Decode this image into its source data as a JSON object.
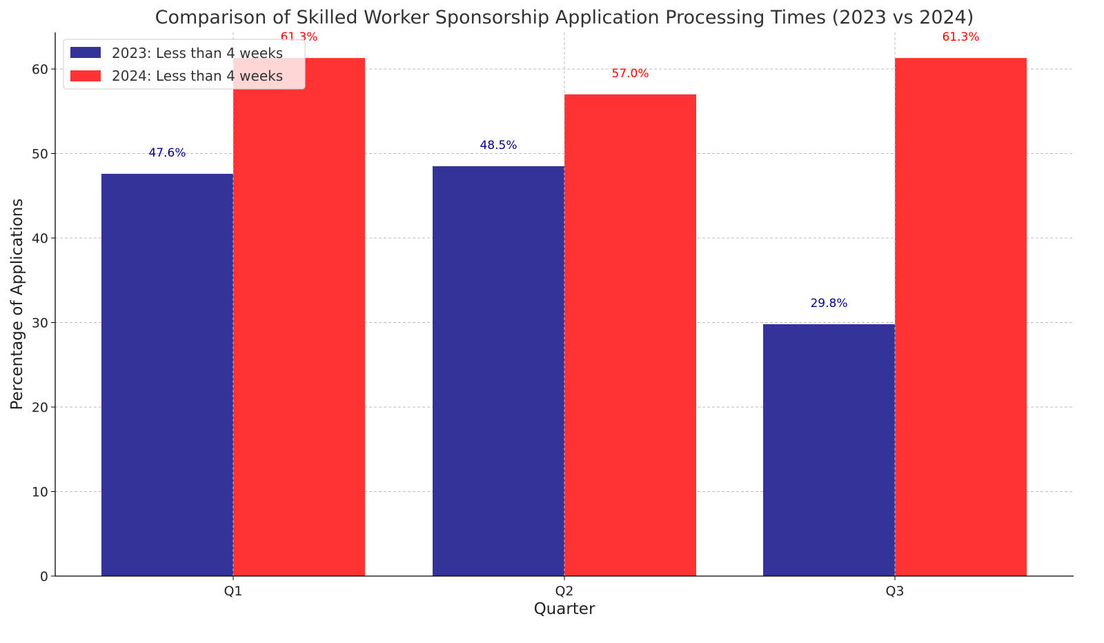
{
  "chart_data": {
    "type": "bar",
    "title": "Comparison of Skilled Worker Sponsorship Application Processing Times (2023 vs 2024)",
    "xlabel": "Quarter",
    "ylabel": "Percentage of Applications",
    "categories": [
      "Q1",
      "Q2",
      "Q3"
    ],
    "ylim": [
      0,
      64.3
    ],
    "yticks": [
      0,
      10,
      20,
      30,
      40,
      50,
      60
    ],
    "grid": true,
    "legend_position": "top-left",
    "series": [
      {
        "name": "2023: Less than 4 weeks",
        "values": [
          47.6,
          48.5,
          29.8
        ],
        "labels": [
          "47.6%",
          "48.5%",
          "29.8%"
        ],
        "color": "#333399",
        "label_color": "#00008b"
      },
      {
        "name": "2024: Less than 4 weeks",
        "values": [
          61.3,
          57.0,
          61.3
        ],
        "labels": [
          "61.3%",
          "57.0%",
          "61.3%"
        ],
        "color": "#ff3333",
        "label_color": "#ff0000"
      }
    ]
  }
}
